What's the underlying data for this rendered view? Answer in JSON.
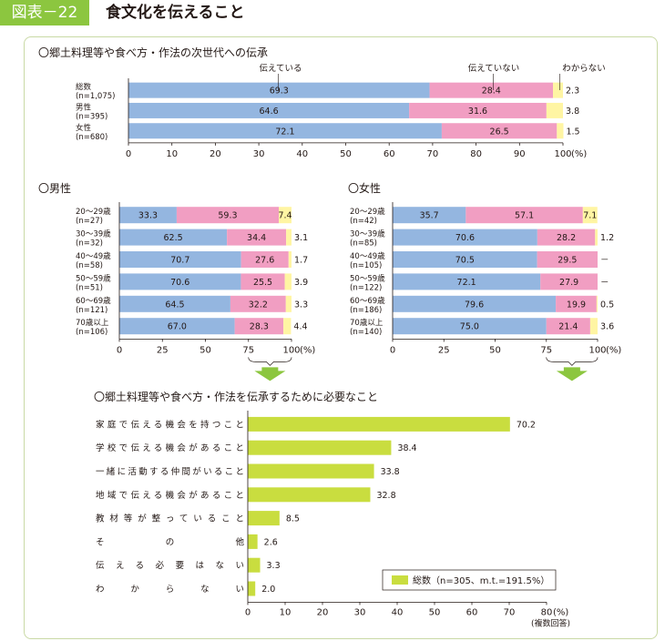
{
  "header": {
    "badge": "図表－22",
    "title": "食文化を伝えること"
  },
  "colors": {
    "tell": "#94b6e0",
    "not_tell": "#f19ec2",
    "unknown": "#fff5a3",
    "total_bar": "#c9dd3f",
    "arrow": "#8cc63f",
    "frame": "#c9d9a5"
  },
  "chart_data": [
    {
      "type": "bar",
      "stacked": true,
      "orientation": "horizontal",
      "title": "〇郷土料理等や食べ方・作法の次世代への伝承",
      "categories": [
        [
          "総数",
          "(n=1,075)"
        ],
        [
          "男性",
          "(n=395)"
        ],
        [
          "女性",
          "(n=680)"
        ]
      ],
      "series": [
        {
          "name": "伝えている",
          "values": [
            69.3,
            64.6,
            72.1
          ],
          "labels": [
            "69.3",
            "64.6",
            "72.1"
          ]
        },
        {
          "name": "伝えていない",
          "values": [
            28.4,
            31.6,
            26.5
          ],
          "labels": [
            "28.4",
            "31.6",
            "26.5"
          ]
        },
        {
          "name": "わからない",
          "values": [
            2.3,
            3.8,
            1.5
          ],
          "labels": [
            "2.3",
            "3.8",
            "1.5"
          ]
        }
      ],
      "xlim": [
        0,
        100
      ],
      "xticks": [
        "0",
        "10",
        "20",
        "30",
        "40",
        "50",
        "60",
        "70",
        "80",
        "90",
        "100"
      ],
      "unit": "(%)"
    },
    {
      "type": "bar",
      "stacked": true,
      "orientation": "horizontal",
      "title": "〇男性",
      "categories": [
        [
          "20～29歳",
          "(n=27)"
        ],
        [
          "30～39歳",
          "(n=32)"
        ],
        [
          "40～49歳",
          "(n=58)"
        ],
        [
          "50～59歳",
          "(n=51)"
        ],
        [
          "60～69歳",
          "(n=121)"
        ],
        [
          "70歳以上",
          "(n=106)"
        ]
      ],
      "series": [
        {
          "values": [
            33.3,
            62.5,
            70.7,
            70.6,
            64.5,
            67.0
          ],
          "labels": [
            "33.3",
            "62.5",
            "70.7",
            "70.6",
            "64.5",
            "67.0"
          ]
        },
        {
          "values": [
            59.3,
            34.4,
            27.6,
            25.5,
            32.2,
            28.3
          ],
          "labels": [
            "59.3",
            "34.4",
            "27.6",
            "25.5",
            "32.2",
            "28.3"
          ]
        },
        {
          "values": [
            7.4,
            3.1,
            1.7,
            3.9,
            3.3,
            4.4
          ],
          "labels": [
            "7.4",
            "3.1",
            "1.7",
            "3.9",
            "3.3",
            "4.4"
          ]
        }
      ],
      "xlim": [
        0,
        100
      ],
      "xticks": [
        "0",
        "25",
        "50",
        "75",
        "100"
      ],
      "unit": "(%)"
    },
    {
      "type": "bar",
      "stacked": true,
      "orientation": "horizontal",
      "title": "〇女性",
      "categories": [
        [
          "20～29歳",
          "(n=42)"
        ],
        [
          "30～39歳",
          "(n=85)"
        ],
        [
          "40～49歳",
          "(n=105)"
        ],
        [
          "50～59歳",
          "(n=122)"
        ],
        [
          "60～69歳",
          "(n=186)"
        ],
        [
          "70歳以上",
          "(n=140)"
        ]
      ],
      "series": [
        {
          "values": [
            35.7,
            70.6,
            70.5,
            72.1,
            79.6,
            75.0
          ],
          "labels": [
            "35.7",
            "70.6",
            "70.5",
            "72.1",
            "79.6",
            "75.0"
          ]
        },
        {
          "values": [
            57.1,
            28.2,
            29.5,
            27.9,
            19.9,
            21.4
          ],
          "labels": [
            "57.1",
            "28.2",
            "29.5",
            "27.9",
            "19.9",
            "21.4"
          ]
        },
        {
          "values": [
            7.1,
            1.2,
            0,
            0,
            0.5,
            3.6
          ],
          "labels": [
            "7.1",
            "1.2",
            "－",
            "－",
            "0.5",
            "3.6"
          ]
        }
      ],
      "xlim": [
        0,
        100
      ],
      "xticks": [
        "0",
        "25",
        "50",
        "75",
        "100"
      ],
      "unit": "(%)"
    },
    {
      "type": "bar",
      "orientation": "horizontal",
      "title": "〇郷土料理等や食べ方・作法を伝承するために必要なこと",
      "categories": [
        "家庭で伝える機会を持つこと",
        "学校で伝える機会があること",
        "一緒に活動する仲間がいること",
        "地域で伝える機会があること",
        "教材等が整っていること",
        "その他",
        "伝える必要はない",
        "わからない"
      ],
      "series": [
        {
          "name": "総数（n=305、m.t.=191.5%）",
          "values": [
            70.2,
            38.4,
            33.8,
            32.8,
            8.5,
            2.6,
            3.3,
            2.0
          ],
          "labels": [
            "70.2",
            "38.4",
            "33.8",
            "32.8",
            "8.5",
            "2.6",
            "3.3",
            "2.0"
          ]
        }
      ],
      "xlim": [
        0,
        80
      ],
      "xticks": [
        "0",
        "10",
        "20",
        "30",
        "40",
        "50",
        "60",
        "70",
        "80"
      ],
      "unit": "(%)",
      "note": "(複数回答)"
    }
  ]
}
